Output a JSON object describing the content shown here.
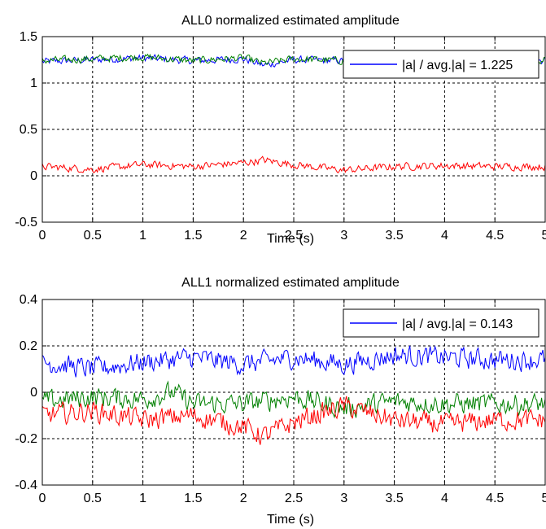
{
  "chart_data": [
    {
      "type": "line",
      "title": "ALL0 normalized estimated amplitude",
      "xlabel": "Time (s)",
      "ylabel": "",
      "xlim": [
        0,
        5
      ],
      "ylim": [
        -0.5,
        1.5
      ],
      "x_ticks": [
        "0",
        "0.5",
        "1",
        "1.5",
        "2",
        "2.5",
        "3",
        "3.5",
        "4",
        "4.5",
        "5"
      ],
      "y_ticks": [
        "-0.5",
        "0",
        "0.5",
        "1",
        "1.5"
      ],
      "grid": true,
      "legend_position": "top-right",
      "legend_text": "|a| / avg.|a| = 1.225",
      "series": [
        {
          "color": "#0000ff",
          "x": [
            0,
            0.5,
            1,
            1.5,
            2,
            2.2,
            2.5,
            3,
            3.5,
            4,
            4.5,
            5
          ],
          "values": [
            1.23,
            1.25,
            1.27,
            1.24,
            1.26,
            1.19,
            1.25,
            1.24,
            1.24,
            1.25,
            1.24,
            1.24
          ]
        },
        {
          "color": "#008000",
          "x": [
            0,
            0.5,
            1,
            1.5,
            2,
            2.2,
            2.5,
            3,
            3.5,
            4,
            4.5,
            5
          ],
          "values": [
            1.24,
            1.26,
            1.28,
            1.24,
            1.27,
            1.21,
            1.26,
            1.24,
            1.25,
            1.25,
            1.25,
            1.25
          ]
        },
        {
          "color": "#ff0000",
          "x": [
            0,
            0.5,
            1,
            1.5,
            2,
            2.2,
            2.5,
            3,
            3.5,
            4,
            4.5,
            5
          ],
          "values": [
            0.1,
            0.07,
            0.12,
            0.1,
            0.14,
            0.17,
            0.12,
            0.06,
            0.1,
            0.11,
            0.1,
            0.1
          ]
        }
      ]
    },
    {
      "type": "line",
      "title": "ALL1 normalized estimated amplitude",
      "xlabel": "Time (s)",
      "ylabel": "",
      "xlim": [
        0,
        5
      ],
      "ylim": [
        -0.4,
        0.4
      ],
      "x_ticks": [
        "0",
        "0.5",
        "1",
        "1.5",
        "2",
        "2.5",
        "3",
        "3.5",
        "4",
        "4.5",
        "5"
      ],
      "y_ticks": [
        "-0.4",
        "-0.2",
        "0",
        "0.2",
        "0.4"
      ],
      "grid": true,
      "legend_position": "top-right",
      "legend_text": "|a| / avg.|a| = 0.143",
      "series": [
        {
          "color": "#0000ff",
          "x": [
            0,
            0.5,
            1,
            1.5,
            2,
            2.5,
            3,
            3.5,
            4,
            4.5,
            5
          ],
          "values": [
            0.13,
            0.1,
            0.13,
            0.15,
            0.12,
            0.15,
            0.12,
            0.16,
            0.15,
            0.14,
            0.14
          ]
        },
        {
          "color": "#008000",
          "x": [
            0,
            0.5,
            1,
            1.3,
            1.5,
            2,
            2.5,
            3,
            3.5,
            4,
            4.5,
            5
          ],
          "values": [
            -0.04,
            -0.02,
            -0.03,
            0.0,
            -0.05,
            -0.05,
            -0.02,
            -0.07,
            -0.04,
            -0.05,
            -0.05,
            -0.05
          ]
        },
        {
          "color": "#ff0000",
          "x": [
            0,
            0.5,
            1,
            1.5,
            2,
            2.2,
            2.5,
            3,
            3.5,
            4,
            4.5,
            5
          ],
          "values": [
            -0.1,
            -0.08,
            -0.12,
            -0.1,
            -0.15,
            -0.19,
            -0.13,
            -0.06,
            -0.12,
            -0.14,
            -0.12,
            -0.12
          ]
        }
      ]
    }
  ]
}
